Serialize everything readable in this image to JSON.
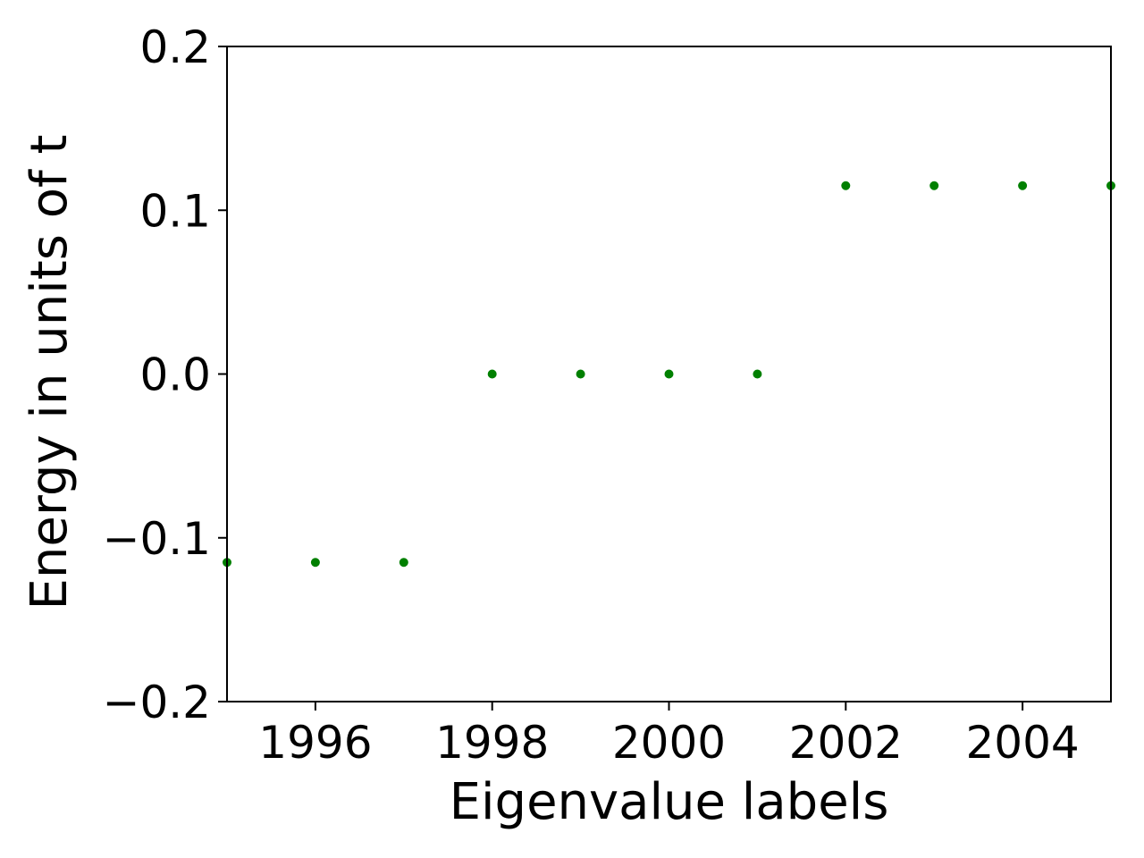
{
  "chart_data": {
    "type": "scatter",
    "title": "",
    "xlabel": "Eigenvalue labels",
    "ylabel": "Energy in units of t",
    "xlim": [
      1995,
      2005
    ],
    "ylim": [
      -0.2,
      0.2
    ],
    "x_ticks": [
      1996,
      1998,
      2000,
      2002,
      2004
    ],
    "x_tick_labels": [
      "1996",
      "1998",
      "2000",
      "2002",
      "2004"
    ],
    "y_ticks": [
      -0.2,
      -0.1,
      0.0,
      0.1,
      0.2
    ],
    "y_tick_labels": [
      "−0.2",
      "−0.1",
      "0.0",
      "0.1",
      "0.2"
    ],
    "grid": false,
    "legend": "none",
    "series": [
      {
        "color": "#008000",
        "points": [
          {
            "x": 1995,
            "y": -0.115
          },
          {
            "x": 1996,
            "y": -0.115
          },
          {
            "x": 1997,
            "y": -0.115
          },
          {
            "x": 1998,
            "y": 0.0
          },
          {
            "x": 1999,
            "y": 0.0
          },
          {
            "x": 2000,
            "y": 0.0
          },
          {
            "x": 2001,
            "y": 0.0
          },
          {
            "x": 2002,
            "y": 0.115
          },
          {
            "x": 2003,
            "y": 0.115
          },
          {
            "x": 2004,
            "y": 0.115
          },
          {
            "x": 2005,
            "y": 0.115
          }
        ]
      }
    ]
  }
}
